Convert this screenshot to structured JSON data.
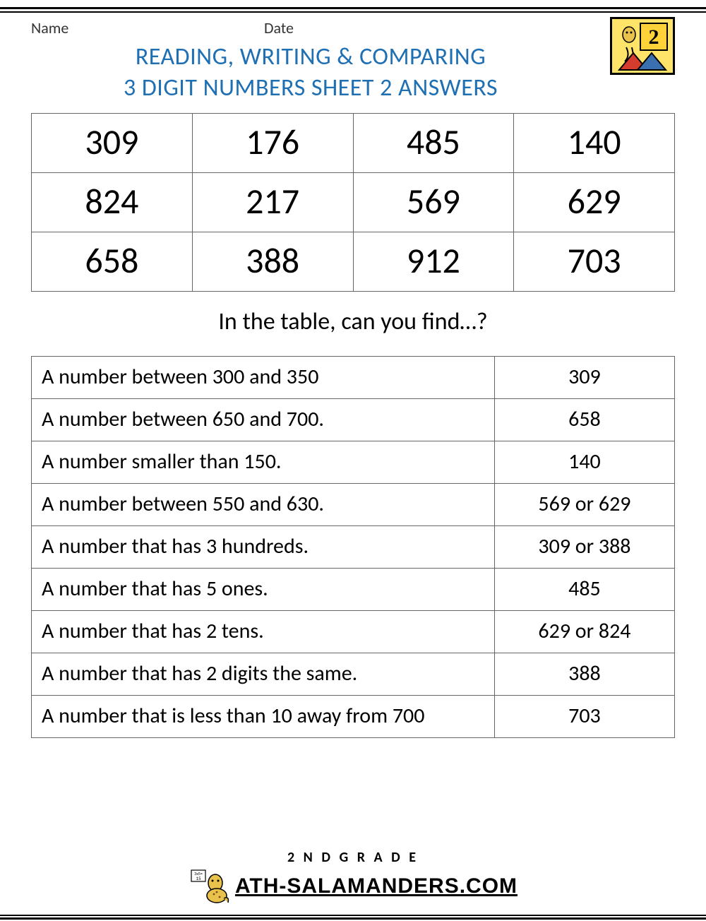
{
  "colors": {
    "title": "#1f6fb3",
    "answer_highlight": "#e60000",
    "text": "#000000",
    "border": "#666666",
    "badge_bg": "#ffe469"
  },
  "header": {
    "name_label": "Name",
    "date_label": "Date"
  },
  "title_line1": "READING, WRITING & COMPARING",
  "title_line2": "3 DIGIT NUMBERS SHEET 2 ANSWERS",
  "number_grid": {
    "rows": [
      [
        "309",
        "176",
        "485",
        "140"
      ],
      [
        "824",
        "217",
        "569",
        "629"
      ],
      [
        "658",
        "388",
        "912",
        "703"
      ]
    ],
    "font_size": 50,
    "cell_border_color": "#666666"
  },
  "prompt_text": "In the table, can you find…?",
  "answers": {
    "font_size": 30,
    "rows": [
      {
        "question": "A number between 300 and 350",
        "answer": "309",
        "red": false
      },
      {
        "question": "A number between 650 and 700.",
        "answer": "658",
        "red": true
      },
      {
        "question": "A number smaller than 150.",
        "answer": "140",
        "red": true
      },
      {
        "question": "A number between 550 and 630.",
        "answer": "569 or 629",
        "red": true
      },
      {
        "question": "A number that has 3 hundreds.",
        "answer": "309 or 388",
        "red": true
      },
      {
        "question": "A number that has 5 ones.",
        "answer": "485",
        "red": true
      },
      {
        "question": "A number that has 2 tens.",
        "answer": "629 or 824",
        "red": true
      },
      {
        "question": "A number that has 2 digits the same.",
        "answer": "388",
        "red": true
      },
      {
        "question": "A number that is less than 10 away from 700",
        "answer": "703",
        "red": true
      }
    ]
  },
  "footer": {
    "grade_text": "2 N D   G R A D E",
    "site_text": "ATH-SALAMANDERS.COM"
  }
}
